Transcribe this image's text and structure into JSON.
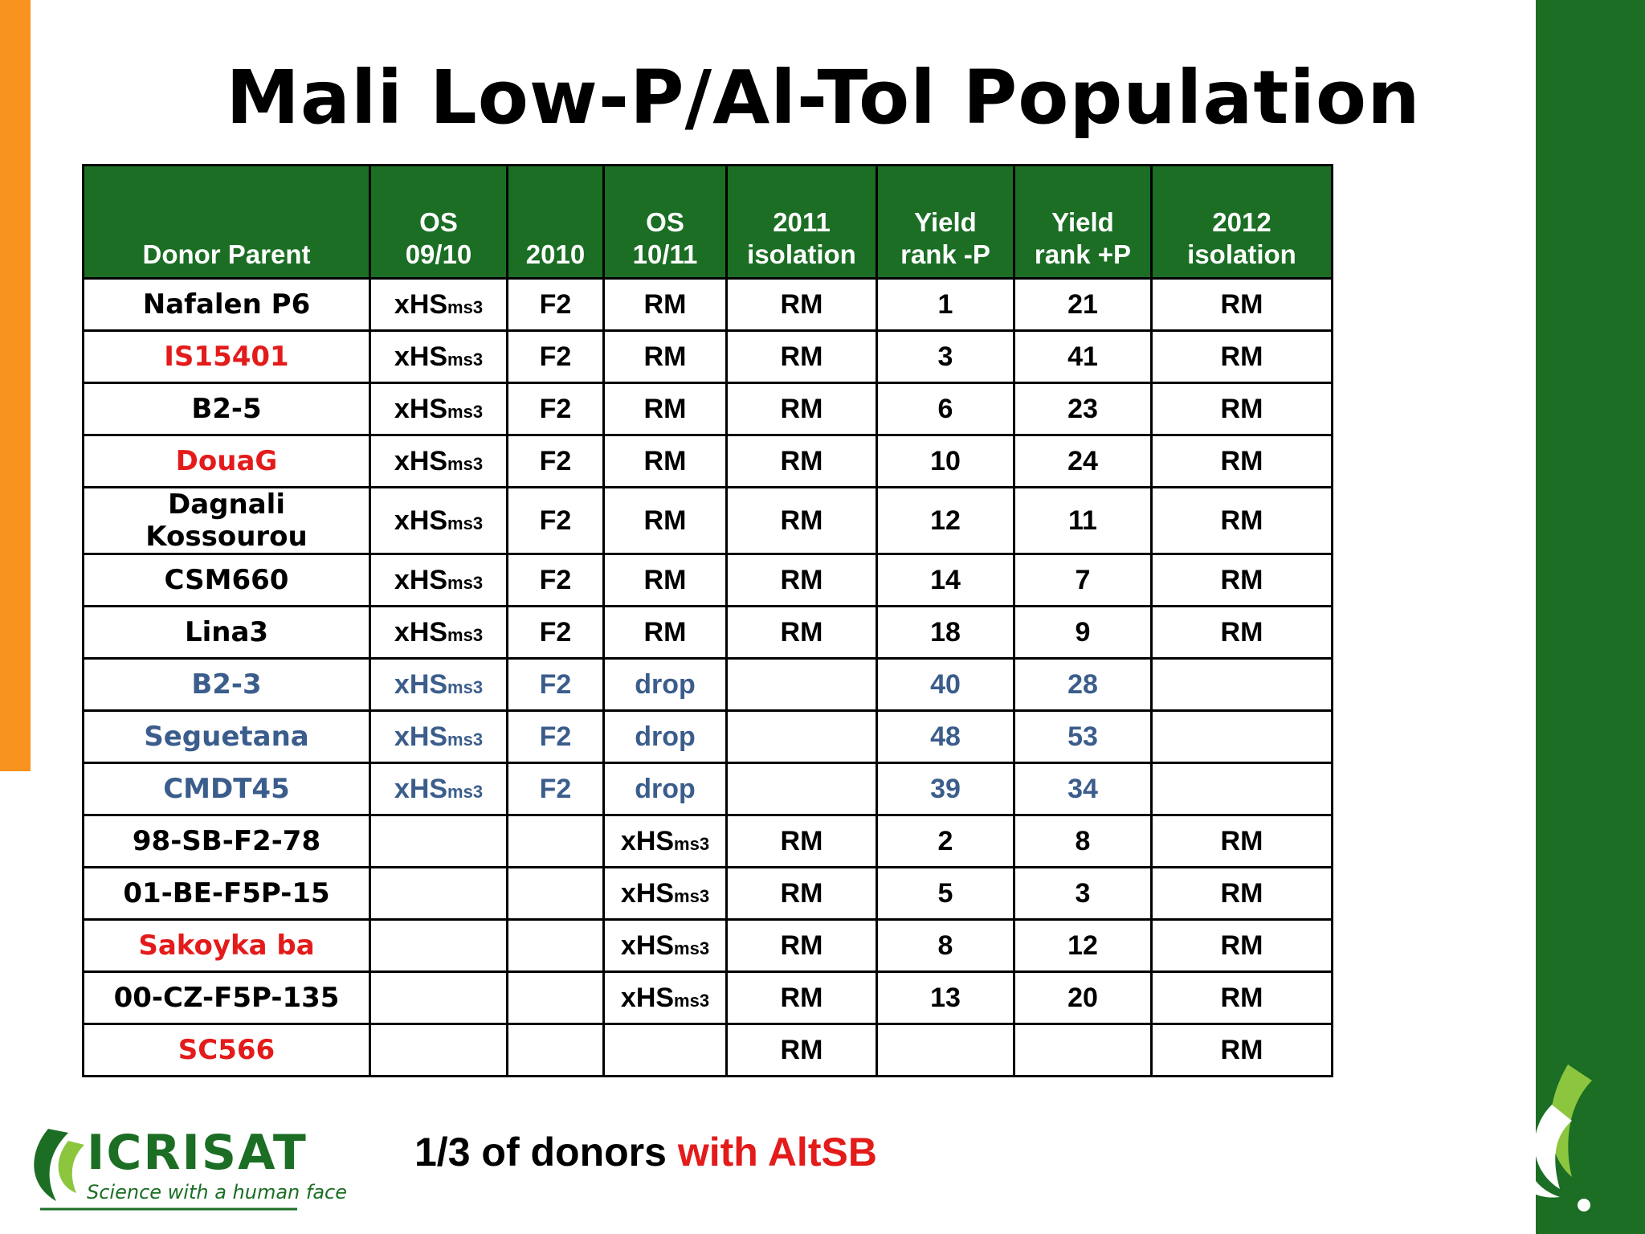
{
  "title": "Mali Low-P/Al-Tol Population",
  "table": {
    "headers": [
      {
        "l1": "",
        "l2": "Donor Parent"
      },
      {
        "l1": "OS",
        "l2": "09/10"
      },
      {
        "l1": "",
        "l2": "2010"
      },
      {
        "l1": "OS",
        "l2": "10/11"
      },
      {
        "l1": "2011",
        "l2": "isolation"
      },
      {
        "l1": "Yield",
        "l2": "rank -P"
      },
      {
        "l1": "Yield",
        "l2": "rank +P"
      },
      {
        "l1": "2012",
        "l2": "isolation"
      }
    ],
    "rows": [
      {
        "donor": "Nafalen P6",
        "style": "black",
        "os0910": "xHS",
        "os0910_sub": "ms3",
        "y2010": "F2",
        "os1011": "RM",
        "os1011_sub": "",
        "iso2011": "RM",
        "rank_minus": "1",
        "rank_plus": "21",
        "iso2012": "RM"
      },
      {
        "donor": "IS15401",
        "style": "red",
        "os0910": "xHS",
        "os0910_sub": "ms3",
        "y2010": "F2",
        "os1011": "RM",
        "os1011_sub": "",
        "iso2011": "RM",
        "rank_minus": "3",
        "rank_plus": "41",
        "iso2012": "RM"
      },
      {
        "donor": "B2-5",
        "style": "black",
        "os0910": "xHS",
        "os0910_sub": "ms3",
        "y2010": "F2",
        "os1011": "RM",
        "os1011_sub": "",
        "iso2011": "RM",
        "rank_minus": "6",
        "rank_plus": "23",
        "iso2012": "RM"
      },
      {
        "donor": "DouaG",
        "style": "red",
        "os0910": "xHS",
        "os0910_sub": "ms3",
        "y2010": "F2",
        "os1011": "RM",
        "os1011_sub": "",
        "iso2011": "RM",
        "rank_minus": "10",
        "rank_plus": "24",
        "iso2012": "RM"
      },
      {
        "donor": "Dagnali Kossourou",
        "style": "black",
        "os0910": "xHS",
        "os0910_sub": "ms3",
        "y2010": "F2",
        "os1011": "RM",
        "os1011_sub": "",
        "iso2011": "RM",
        "rank_minus": "12",
        "rank_plus": "11",
        "iso2012": "RM"
      },
      {
        "donor": "CSM660",
        "style": "black",
        "os0910": "xHS",
        "os0910_sub": "ms3",
        "y2010": "F2",
        "os1011": "RM",
        "os1011_sub": "",
        "iso2011": "RM",
        "rank_minus": "14",
        "rank_plus": "7",
        "iso2012": "RM"
      },
      {
        "donor": "Lina3",
        "style": "black",
        "os0910": "xHS",
        "os0910_sub": "ms3",
        "y2010": "F2",
        "os1011": "RM",
        "os1011_sub": "",
        "iso2011": "RM",
        "rank_minus": "18",
        "rank_plus": "9",
        "iso2012": "RM"
      },
      {
        "donor": "B2-3",
        "style": "blue",
        "os0910": "xHS",
        "os0910_sub": "ms3",
        "y2010": "F2",
        "os1011": "drop",
        "os1011_sub": "",
        "iso2011": "",
        "rank_minus": "40",
        "rank_plus": "28",
        "iso2012": ""
      },
      {
        "donor": "Seguetana",
        "style": "blue",
        "os0910": "xHS",
        "os0910_sub": "ms3",
        "y2010": "F2",
        "os1011": "drop",
        "os1011_sub": "",
        "iso2011": "",
        "rank_minus": "48",
        "rank_plus": "53",
        "iso2012": ""
      },
      {
        "donor": "CMDT45",
        "style": "blue",
        "os0910": "xHS",
        "os0910_sub": "ms3",
        "y2010": "F2",
        "os1011": "drop",
        "os1011_sub": "",
        "iso2011": "",
        "rank_minus": "39",
        "rank_plus": "34",
        "iso2012": ""
      },
      {
        "donor": "98-SB-F2-78",
        "style": "black",
        "os0910": "",
        "os0910_sub": "",
        "y2010": "",
        "os1011": "xHS",
        "os1011_sub": "ms3",
        "iso2011": "RM",
        "rank_minus": "2",
        "rank_plus": "8",
        "iso2012": "RM"
      },
      {
        "donor": "01-BE-F5P-15",
        "style": "black",
        "os0910": "",
        "os0910_sub": "",
        "y2010": "",
        "os1011": "xHS",
        "os1011_sub": "ms3",
        "iso2011": "RM",
        "rank_minus": "5",
        "rank_plus": "3",
        "iso2012": "RM"
      },
      {
        "donor": "Sakoyka ba",
        "style": "red",
        "os0910": "",
        "os0910_sub": "",
        "y2010": "",
        "os1011": "xHS",
        "os1011_sub": "ms3",
        "iso2011": "RM",
        "rank_minus": "8",
        "rank_plus": "12",
        "iso2012": "RM"
      },
      {
        "donor": "00-CZ-F5P-135",
        "style": "black",
        "os0910": "",
        "os0910_sub": "",
        "y2010": "",
        "os1011": "xHS",
        "os1011_sub": "ms3",
        "iso2011": "RM",
        "rank_minus": "13",
        "rank_plus": "20",
        "iso2012": "RM"
      },
      {
        "donor": "SC566",
        "style": "red",
        "os0910": "",
        "os0910_sub": "",
        "y2010": "",
        "os1011": "",
        "os1011_sub": "",
        "iso2011": "RM",
        "rank_minus": "",
        "rank_plus": "",
        "iso2012": "RM"
      }
    ]
  },
  "footer": {
    "part1": "1/3 of donors ",
    "part2": "with AltSB"
  },
  "logo": {
    "name": "ICRISAT",
    "tagline": "Science with a human face"
  },
  "colors": {
    "green": "#1b6e24",
    "orange": "#f7931e",
    "red": "#e31b1b",
    "blue": "#3b5d8c"
  }
}
